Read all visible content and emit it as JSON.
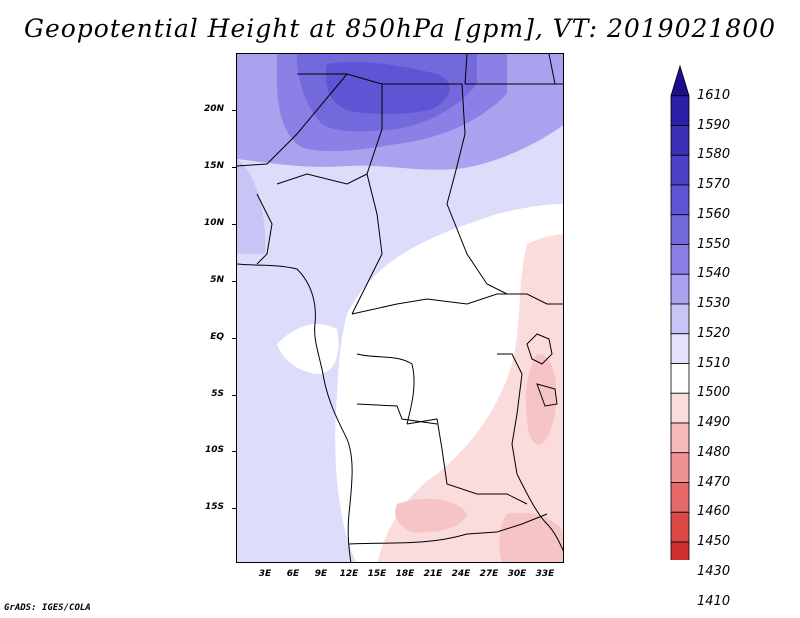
{
  "title": "Geopotential Height at 850hPa [gpm], VT: 2019021800",
  "footer": "GrADS: IGES/COLA",
  "map": {
    "name": "Geopotential height 850hPa over Central Africa",
    "lat_labels": [
      "20N",
      "15N",
      "10N",
      "5N",
      "EQ",
      "5S",
      "10S",
      "15S"
    ],
    "lon_labels": [
      "3E",
      "6E",
      "9E",
      "12E",
      "15E",
      "18E",
      "21E",
      "24E",
      "27E",
      "30E",
      "33E"
    ]
  },
  "colorbar": {
    "levels": [
      "1610",
      "1590",
      "1580",
      "1570",
      "1560",
      "1550",
      "1540",
      "1530",
      "1520",
      "1510",
      "1500",
      "1490",
      "1480",
      "1470",
      "1460",
      "1450",
      "1430",
      "1410"
    ],
    "colors": [
      "#1a0f8c",
      "#2a1fa6",
      "#3b30b8",
      "#4c42c8",
      "#5e55d4",
      "#7469dc",
      "#8b80e6",
      "#a9a2ee",
      "#c8c4f6",
      "#e4e2fb",
      "#ffffff",
      "#fbdcdc",
      "#f6b8b8",
      "#ef9292",
      "#e66a6a",
      "#dc4848",
      "#cf2e2e",
      "#b81818"
    ]
  }
}
